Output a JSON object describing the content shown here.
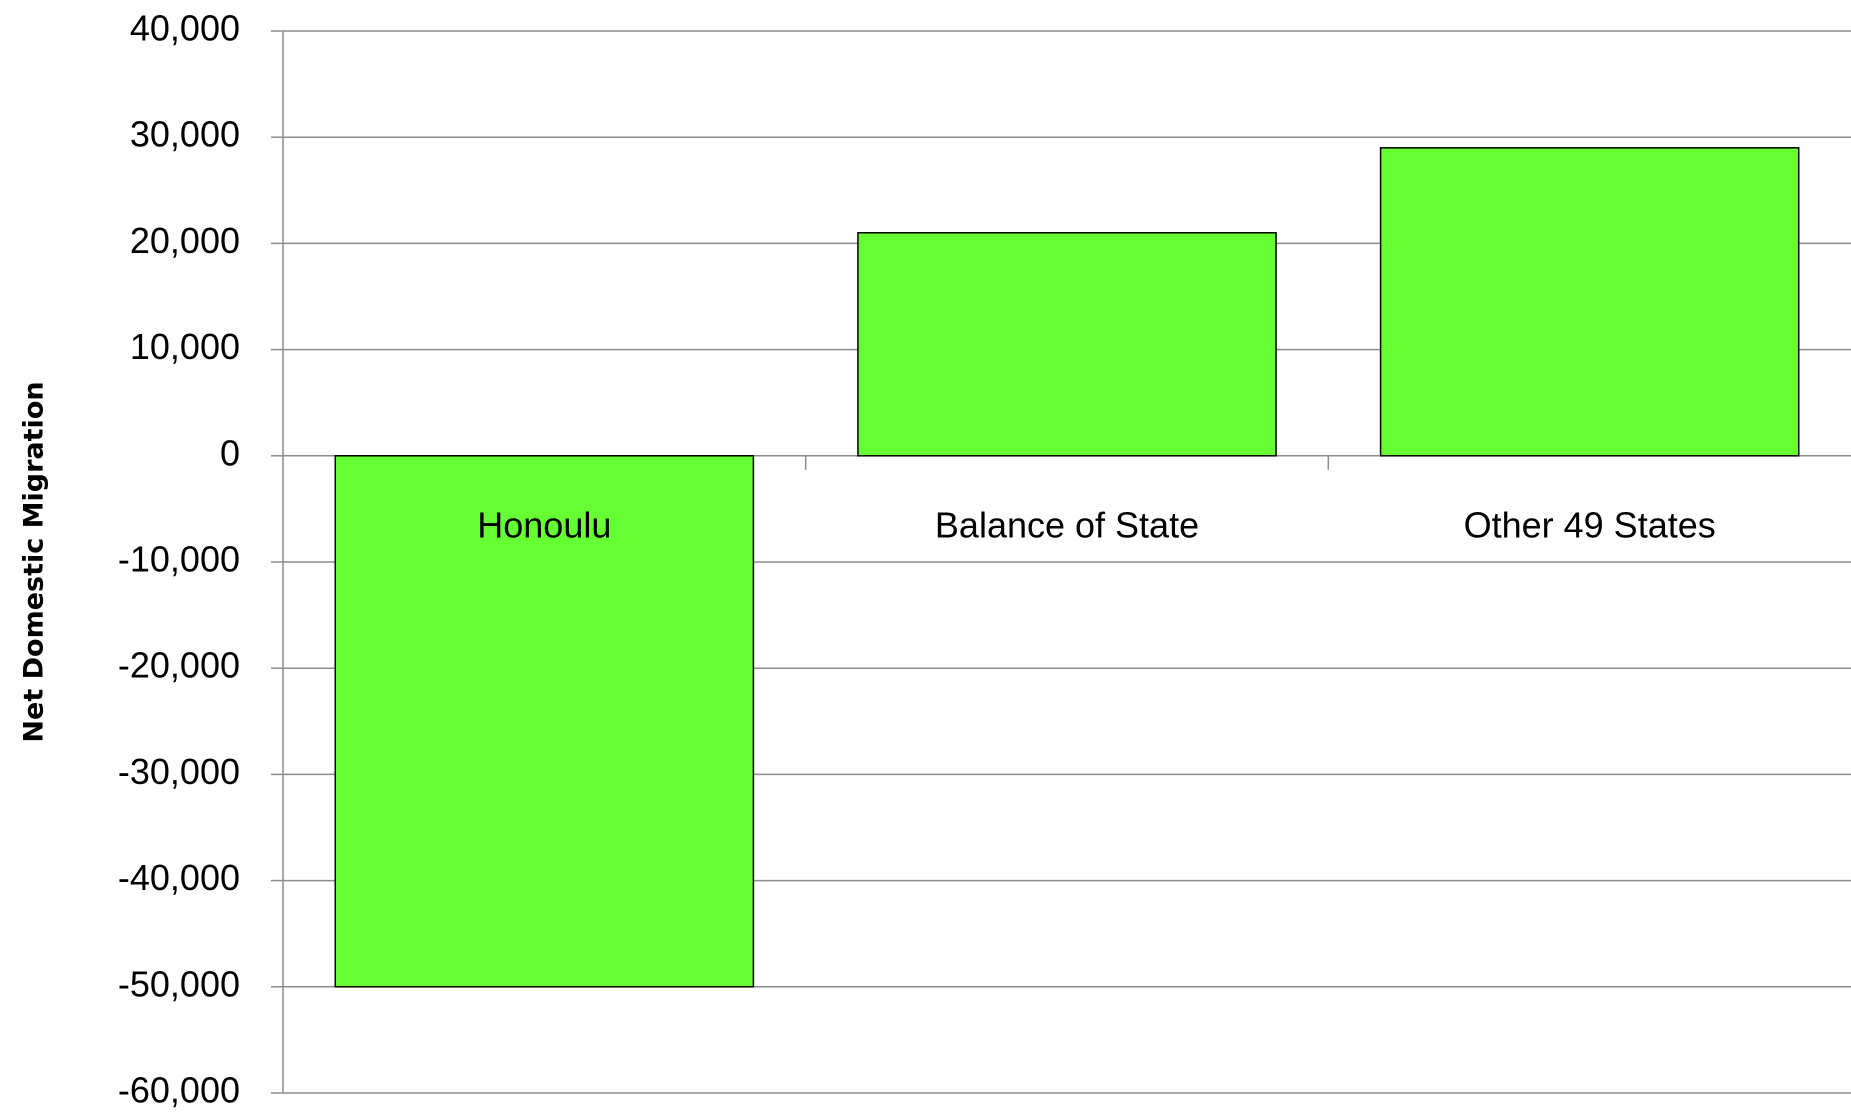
{
  "chart_data": {
    "type": "bar",
    "y_label": "Net Domestic Migration",
    "categories": [
      "Honoulu",
      "Balance of State",
      "Other 49 States"
    ],
    "values": [
      -50000,
      21000,
      29000
    ],
    "color": "#66ff33",
    "ylim": [
      -60000,
      40000
    ],
    "yticks": [
      {
        "value": -60000,
        "label": "-60,000"
      },
      {
        "value": -50000,
        "label": "-50,000"
      },
      {
        "value": -40000,
        "label": "-40,000"
      },
      {
        "value": -30000,
        "label": "-30,000"
      },
      {
        "value": -20000,
        "label": "-20,000"
      },
      {
        "value": -10000,
        "label": "-10,000"
      },
      0,
      {
        "value": 10000,
        "label": "10,000"
      },
      {
        "value": 20000,
        "label": "20,000"
      },
      {
        "value": 30000,
        "label": "30,000"
      },
      {
        "value": 40000,
        "label": "40,000"
      }
    ],
    "grid": true
  }
}
